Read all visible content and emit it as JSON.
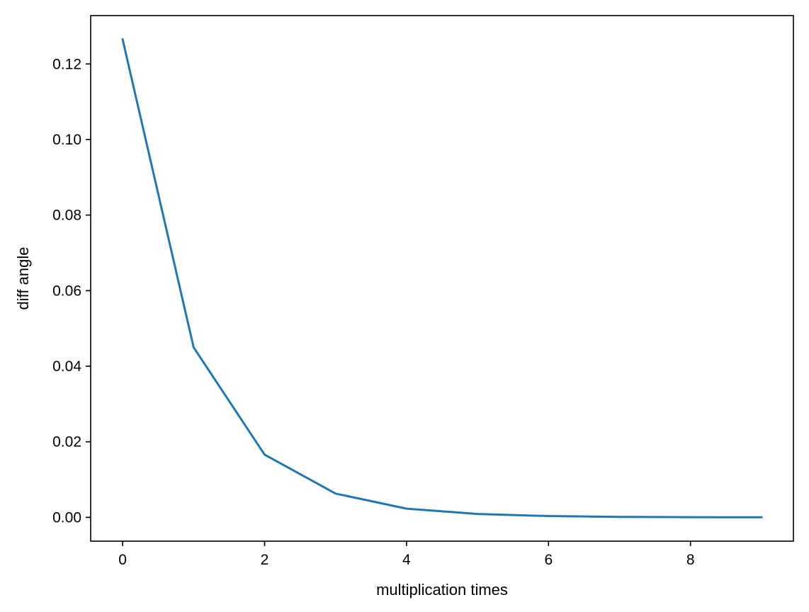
{
  "chart_data": {
    "type": "line",
    "title": "",
    "xlabel": "multiplication times",
    "ylabel": "diff angle",
    "xlim": [
      -0.45,
      9.45
    ],
    "ylim": [
      -0.0063,
      0.1328
    ],
    "xticks": [
      0,
      2,
      4,
      6,
      8
    ],
    "xtick_labels": [
      "0",
      "2",
      "4",
      "6",
      "8"
    ],
    "yticks": [
      0.0,
      0.02,
      0.04,
      0.06,
      0.08,
      0.1,
      0.12
    ],
    "ytick_labels": [
      "0.00",
      "0.02",
      "0.04",
      "0.06",
      "0.08",
      "0.10",
      "0.12"
    ],
    "grid": false,
    "legend": "none",
    "series": [
      {
        "x": [
          0,
          1,
          2,
          3,
          4,
          5,
          6,
          7,
          8,
          9
        ],
        "y": [
          0.1265,
          0.045,
          0.0166,
          0.0063,
          0.0023,
          0.0009,
          0.00035,
          0.00013,
          5e-05,
          2e-05
        ],
        "color": "#1f77b4"
      }
    ]
  }
}
